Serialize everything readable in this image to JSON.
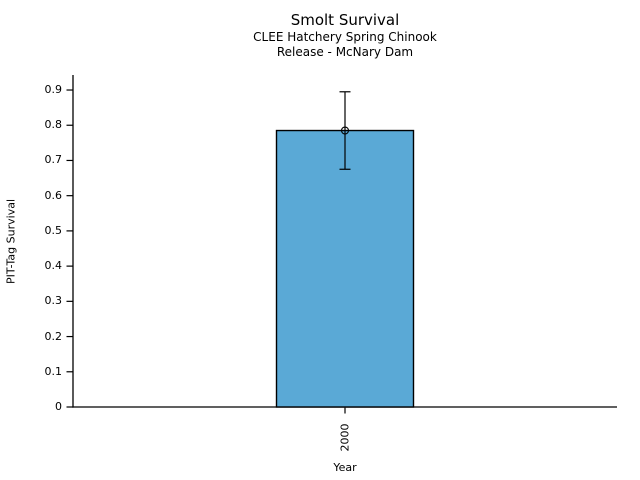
{
  "chart_data": {
    "type": "bar",
    "title": "Smolt Survival",
    "subtitle": [
      "CLEE Hatchery Spring Chinook",
      "Release - McNary Dam"
    ],
    "xlabel": "Year",
    "ylabel": "PIT-Tag Survival",
    "categories": [
      "2000"
    ],
    "values": [
      0.785
    ],
    "error_bars": [
      {
        "low": 0.675,
        "high": 0.895
      }
    ],
    "marker": "open-circle",
    "ytick_values": [
      0,
      0.1,
      0.2,
      0.3,
      0.4,
      0.5,
      0.6,
      0.7,
      0.8,
      0.9
    ],
    "ytick_labels": [
      "0",
      "0.1",
      "0.2",
      "0.3",
      "0.4",
      "0.5",
      "0.6",
      "0.7",
      "0.8",
      "0.9"
    ],
    "ylim": [
      0,
      0.94
    ],
    "grid": false,
    "legend": false,
    "bar_color": "#5aa9d6",
    "bar_edge_color": "#000000",
    "axis_color": "#000000"
  }
}
